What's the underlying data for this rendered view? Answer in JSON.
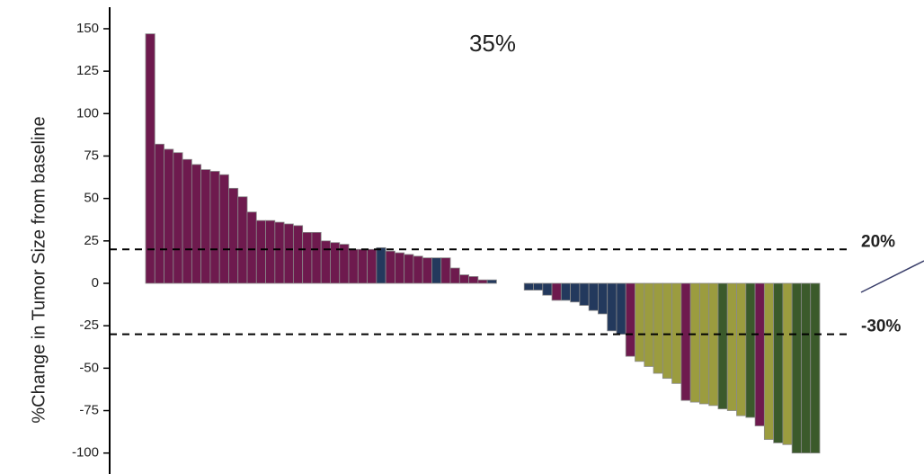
{
  "chart_data": {
    "type": "waterfall",
    "title": "35%",
    "y_label": "%Change in Tumor Size from baseline",
    "ylim": [
      -110,
      165
    ],
    "yticks": [
      150,
      125,
      100,
      75,
      50,
      25,
      0,
      -25,
      -50,
      -75,
      -100
    ],
    "reference_lines": [
      {
        "value": 20,
        "label": "20%"
      },
      {
        "value": -30,
        "label": "-30%"
      }
    ],
    "values": [
      147,
      82,
      79,
      77,
      73,
      70,
      67,
      66,
      64,
      56,
      51,
      42,
      37,
      37,
      36,
      35,
      34,
      30,
      30,
      25,
      24,
      23,
      20,
      20,
      20,
      21,
      19,
      18,
      17,
      16,
      15,
      15,
      15,
      9,
      5,
      4,
      2,
      2,
      0,
      0,
      0,
      -4,
      -4,
      -7,
      -10,
      -10,
      -11,
      -13,
      -16,
      -18,
      -28,
      -30,
      -43,
      -46,
      -49,
      -53,
      -56,
      -59,
      -69,
      -70,
      -71,
      -72,
      -74,
      -75,
      -78,
      -79,
      -84,
      -92,
      -94,
      -95,
      -100,
      -100,
      -100
    ],
    "colors": [
      "#6e1a4e",
      "#6e1a4e",
      "#6e1a4e",
      "#6e1a4e",
      "#6e1a4e",
      "#6e1a4e",
      "#6e1a4e",
      "#6e1a4e",
      "#6e1a4e",
      "#6e1a4e",
      "#6e1a4e",
      "#6e1a4e",
      "#6e1a4e",
      "#6e1a4e",
      "#6e1a4e",
      "#6e1a4e",
      "#6e1a4e",
      "#6e1a4e",
      "#6e1a4e",
      "#6e1a4e",
      "#6e1a4e",
      "#6e1a4e",
      "#6e1a4e",
      "#6e1a4e",
      "#6e1a4e",
      "#23395d",
      "#6e1a4e",
      "#6e1a4e",
      "#6e1a4e",
      "#6e1a4e",
      "#6e1a4e",
      "#23395d",
      "#6e1a4e",
      "#6e1a4e",
      "#6e1a4e",
      "#6e1a4e",
      "#6e1a4e",
      "#23395d",
      "#23395d",
      "#23395d",
      "#23395d",
      "#23395d",
      "#23395d",
      "#23395d",
      "#6e1a4e",
      "#23395d",
      "#23395d",
      "#23395d",
      "#23395d",
      "#23395d",
      "#23395d",
      "#23395d",
      "#6e1a4e",
      "#9b9c3f",
      "#9b9c3f",
      "#9b9c3f",
      "#9b9c3f",
      "#9b9c3f",
      "#6e1a4e",
      "#9b9c3f",
      "#9b9c3f",
      "#9b9c3f",
      "#3b5a2b",
      "#9b9c3f",
      "#9b9c3f",
      "#3b5a2b",
      "#6e1a4e",
      "#9b9c3f",
      "#3b5a2b",
      "#9b9c3f",
      "#3b5a2b",
      "#3b5a2b",
      "#3b5a2b"
    ]
  }
}
